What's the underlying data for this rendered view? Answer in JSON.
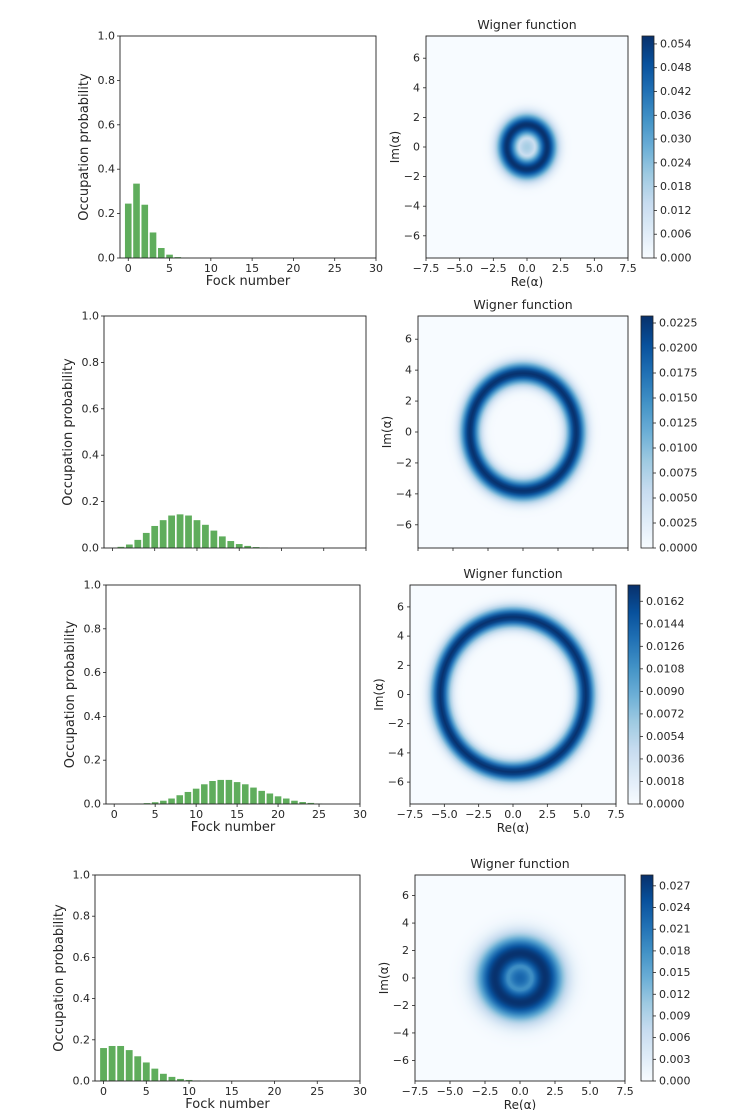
{
  "chart_data": [
    {
      "type": "bar",
      "xlabel": "Fock number",
      "ylabel": "Occupation probability",
      "xlim": [
        -1,
        30
      ],
      "ylim": [
        0,
        1.0
      ],
      "xticks": [
        "0",
        "5",
        "10",
        "15",
        "20",
        "25",
        "30"
      ],
      "yticks": [
        "0.0",
        "0.2",
        "0.4",
        "0.6",
        "0.8",
        "1.0"
      ],
      "bar_color": "#5fad5c",
      "x": [
        0,
        1,
        2,
        3,
        4,
        5,
        6,
        7
      ],
      "values": [
        0.245,
        0.335,
        0.24,
        0.115,
        0.045,
        0.015,
        0.004,
        0.001
      ]
    },
    {
      "type": "heatmap",
      "title": "Wigner function",
      "xlabel": "Re(α)",
      "ylabel": "Im(α)",
      "xticks": [
        "−7.5",
        "−5.0",
        "−2.5",
        "0.0",
        "2.5",
        "5.0",
        "7.5"
      ],
      "yticks": [
        "6",
        "4",
        "2",
        "0",
        "−2",
        "−4",
        "−6"
      ],
      "colormap": "Blues",
      "colorbar_ticks": [
        "0.000",
        "0.006",
        "0.012",
        "0.018",
        "0.024",
        "0.030",
        "0.036",
        "0.042",
        "0.048",
        "0.054"
      ],
      "colorbar_max": 0.056,
      "ring_radius": 1.5,
      "ring_width": 1.0,
      "center_level": 0.35
    },
    {
      "type": "bar",
      "xlabel": "",
      "ylabel": "Occupation probability",
      "xlim": [
        -1,
        30
      ],
      "ylim": [
        0,
        1.0
      ],
      "xticks": [],
      "yticks": [
        "0.0",
        "0.2",
        "0.4",
        "0.6",
        "0.8",
        "1.0"
      ],
      "bar_color": "#5fad5c",
      "x": [
        0,
        1,
        2,
        3,
        4,
        5,
        6,
        7,
        8,
        9,
        10,
        11,
        12,
        13,
        14,
        15,
        16,
        17,
        18
      ],
      "values": [
        0.001,
        0.005,
        0.015,
        0.035,
        0.065,
        0.095,
        0.12,
        0.14,
        0.145,
        0.14,
        0.12,
        0.1,
        0.075,
        0.05,
        0.03,
        0.017,
        0.009,
        0.004,
        0.002
      ]
    },
    {
      "type": "heatmap",
      "title": "Wigner function",
      "xlabel": "",
      "ylabel": "Im(α)",
      "xticks": [],
      "yticks": [
        "6",
        "4",
        "2",
        "0",
        "−2",
        "−4",
        "−6"
      ],
      "colormap": "Blues",
      "colorbar_ticks": [
        "0.0000",
        "0.0025",
        "0.0050",
        "0.0075",
        "0.0100",
        "0.0125",
        "0.0150",
        "0.0175",
        "0.0200",
        "0.0225"
      ],
      "colorbar_max": 0.0232,
      "ring_radius": 3.8,
      "ring_width": 0.95,
      "center_level": 0.0
    },
    {
      "type": "bar",
      "xlabel": "Fock number",
      "ylabel": "Occupation probability",
      "xlim": [
        -1,
        30
      ],
      "ylim": [
        0,
        1.0
      ],
      "xticks": [
        "0",
        "5",
        "10",
        "15",
        "20",
        "25",
        "30"
      ],
      "yticks": [
        "0.0",
        "0.2",
        "0.4",
        "0.6",
        "0.8",
        "1.0"
      ],
      "bar_color": "#5fad5c",
      "x": [
        3,
        4,
        5,
        6,
        7,
        8,
        9,
        10,
        11,
        12,
        13,
        14,
        15,
        16,
        17,
        18,
        19,
        20,
        21,
        22,
        23,
        24,
        25
      ],
      "values": [
        0.001,
        0.004,
        0.008,
        0.015,
        0.025,
        0.04,
        0.055,
        0.07,
        0.09,
        0.105,
        0.11,
        0.11,
        0.1,
        0.09,
        0.075,
        0.06,
        0.048,
        0.035,
        0.025,
        0.015,
        0.009,
        0.005,
        0.002
      ]
    },
    {
      "type": "heatmap",
      "title": "Wigner function",
      "xlabel": "Re(α)",
      "ylabel": "Im(α)",
      "xticks": [
        "−7.5",
        "−5.0",
        "−2.5",
        "0.0",
        "2.5",
        "5.0",
        "7.5"
      ],
      "yticks": [
        "6",
        "4",
        "2",
        "0",
        "−2",
        "−4",
        "−6"
      ],
      "colormap": "Blues",
      "colorbar_ticks": [
        "0.0000",
        "0.0018",
        "0.0036",
        "0.0054",
        "0.0072",
        "0.0090",
        "0.0108",
        "0.0126",
        "0.0144",
        "0.0162"
      ],
      "colorbar_max": 0.0175,
      "ring_radius": 5.3,
      "ring_width": 0.95,
      "center_level": 0.0
    },
    {
      "type": "bar",
      "xlabel": "Fock number",
      "ylabel": "Occupation probability",
      "xlim": [
        -1,
        30
      ],
      "ylim": [
        0,
        1.0
      ],
      "xticks": [
        "0",
        "5",
        "10",
        "15",
        "20",
        "25",
        "30"
      ],
      "yticks": [
        "0.0",
        "0.2",
        "0.4",
        "0.6",
        "0.8",
        "1.0"
      ],
      "bar_color": "#5fad5c",
      "x": [
        0,
        1,
        2,
        3,
        4,
        5,
        6,
        7,
        8,
        9,
        10,
        11,
        12
      ],
      "values": [
        0.16,
        0.17,
        0.17,
        0.15,
        0.12,
        0.09,
        0.06,
        0.035,
        0.02,
        0.01,
        0.005,
        0.002,
        0.001
      ]
    },
    {
      "type": "heatmap",
      "title": "Wigner function",
      "xlabel": "Re(α)",
      "ylabel": "Im(α)",
      "xticks": [
        "−7.5",
        "−5.0",
        "−2.5",
        "0.0",
        "2.5",
        "5.0",
        "7.5"
      ],
      "yticks": [
        "6",
        "4",
        "2",
        "0",
        "−2",
        "−4",
        "−6"
      ],
      "colormap": "Blues",
      "colorbar_ticks": [
        "0.000",
        "0.003",
        "0.006",
        "0.009",
        "0.012",
        "0.015",
        "0.018",
        "0.021",
        "0.024",
        "0.027"
      ],
      "colorbar_max": 0.0285,
      "ring_radius": 1.8,
      "ring_width": 1.8,
      "center_level": 0.8
    }
  ]
}
